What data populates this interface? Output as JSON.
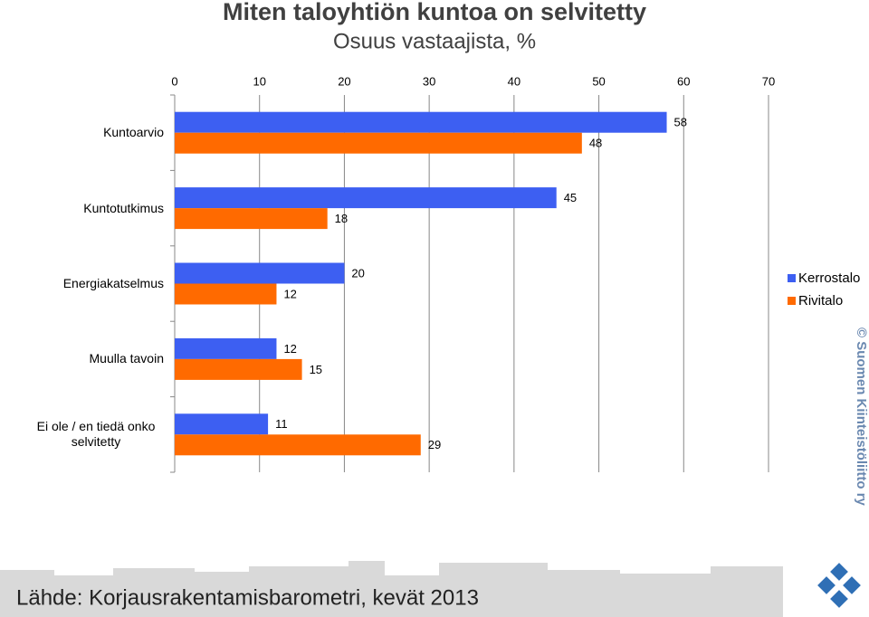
{
  "chart_data": {
    "type": "hbar",
    "title": "Miten taloyhtiön kuntoa on selvitetty",
    "subtitle": "Osuus vastaajista, %",
    "categories": [
      "Kuntoarvio",
      "Kuntotutkimus",
      "Energiakatselmus",
      "Muulla tavoin",
      "Ei ole / en tiedä onko selvitetty"
    ],
    "series": [
      {
        "name": "Kerrostalo",
        "color": "#3d5ff2",
        "values": [
          58,
          45,
          20,
          12,
          11
        ]
      },
      {
        "name": "Rivitalo",
        "color": "#ff6a00",
        "values": [
          48,
          18,
          12,
          15,
          29
        ]
      }
    ],
    "xlim": [
      0,
      70
    ],
    "xticks": [
      0,
      10,
      20,
      30,
      40,
      50,
      60,
      70
    ],
    "grid": true,
    "legend": "right",
    "source": "Lähde: Korjausrakentamisbarometri, kevät 2013",
    "copyright": "© Suomen Kiinteistöliitto ry"
  }
}
